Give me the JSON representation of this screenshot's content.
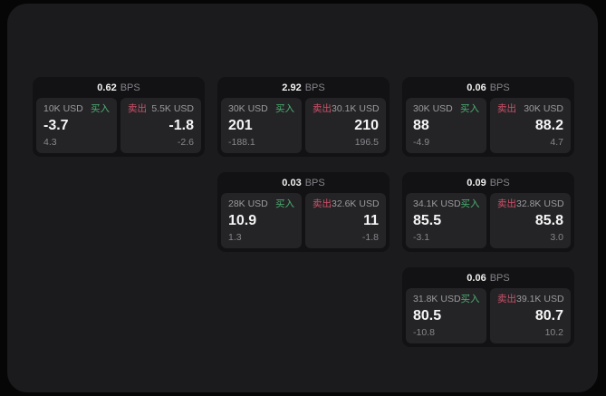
{
  "labels": {
    "bps_unit": "BPS",
    "buy_tag": "买入",
    "sell_tag": "卖出"
  },
  "colors": {
    "background": "#060606",
    "panel": "#1b1b1d",
    "card": "#121214",
    "subpanel": "#242427",
    "buy_green": "#4caf70",
    "sell_red": "#cf5268",
    "value_white": "#f5f5f5",
    "muted_gray": "#9b9b9e"
  },
  "cards": [
    {
      "bps": "0.62",
      "buy": {
        "amount": "10K USD",
        "value": "-3.7",
        "sub": "4.3"
      },
      "sell": {
        "amount": "5.5K USD",
        "value": "-1.8",
        "sub": "-2.6"
      }
    },
    {
      "bps": "2.92",
      "buy": {
        "amount": "30K USD",
        "value": "201",
        "sub": "-188.1"
      },
      "sell": {
        "amount": "30.1K USD",
        "value": "210",
        "sub": "196.5"
      }
    },
    {
      "bps": "0.06",
      "buy": {
        "amount": "30K USD",
        "value": "88",
        "sub": "-4.9"
      },
      "sell": {
        "amount": "30K USD",
        "value": "88.2",
        "sub": "4.7"
      }
    },
    {
      "bps": "0.03",
      "buy": {
        "amount": "28K USD",
        "value": "10.9",
        "sub": "1.3"
      },
      "sell": {
        "amount": "32.6K USD",
        "value": "11",
        "sub": "-1.8"
      }
    },
    {
      "bps": "0.09",
      "buy": {
        "amount": "34.1K USD",
        "value": "85.5",
        "sub": "-3.1"
      },
      "sell": {
        "amount": "32.8K USD",
        "value": "85.8",
        "sub": "3.0"
      }
    },
    {
      "bps": "0.06",
      "buy": {
        "amount": "31.8K USD",
        "value": "80.5",
        "sub": "-10.8"
      },
      "sell": {
        "amount": "39.1K USD",
        "value": "80.7",
        "sub": "10.2"
      }
    }
  ]
}
